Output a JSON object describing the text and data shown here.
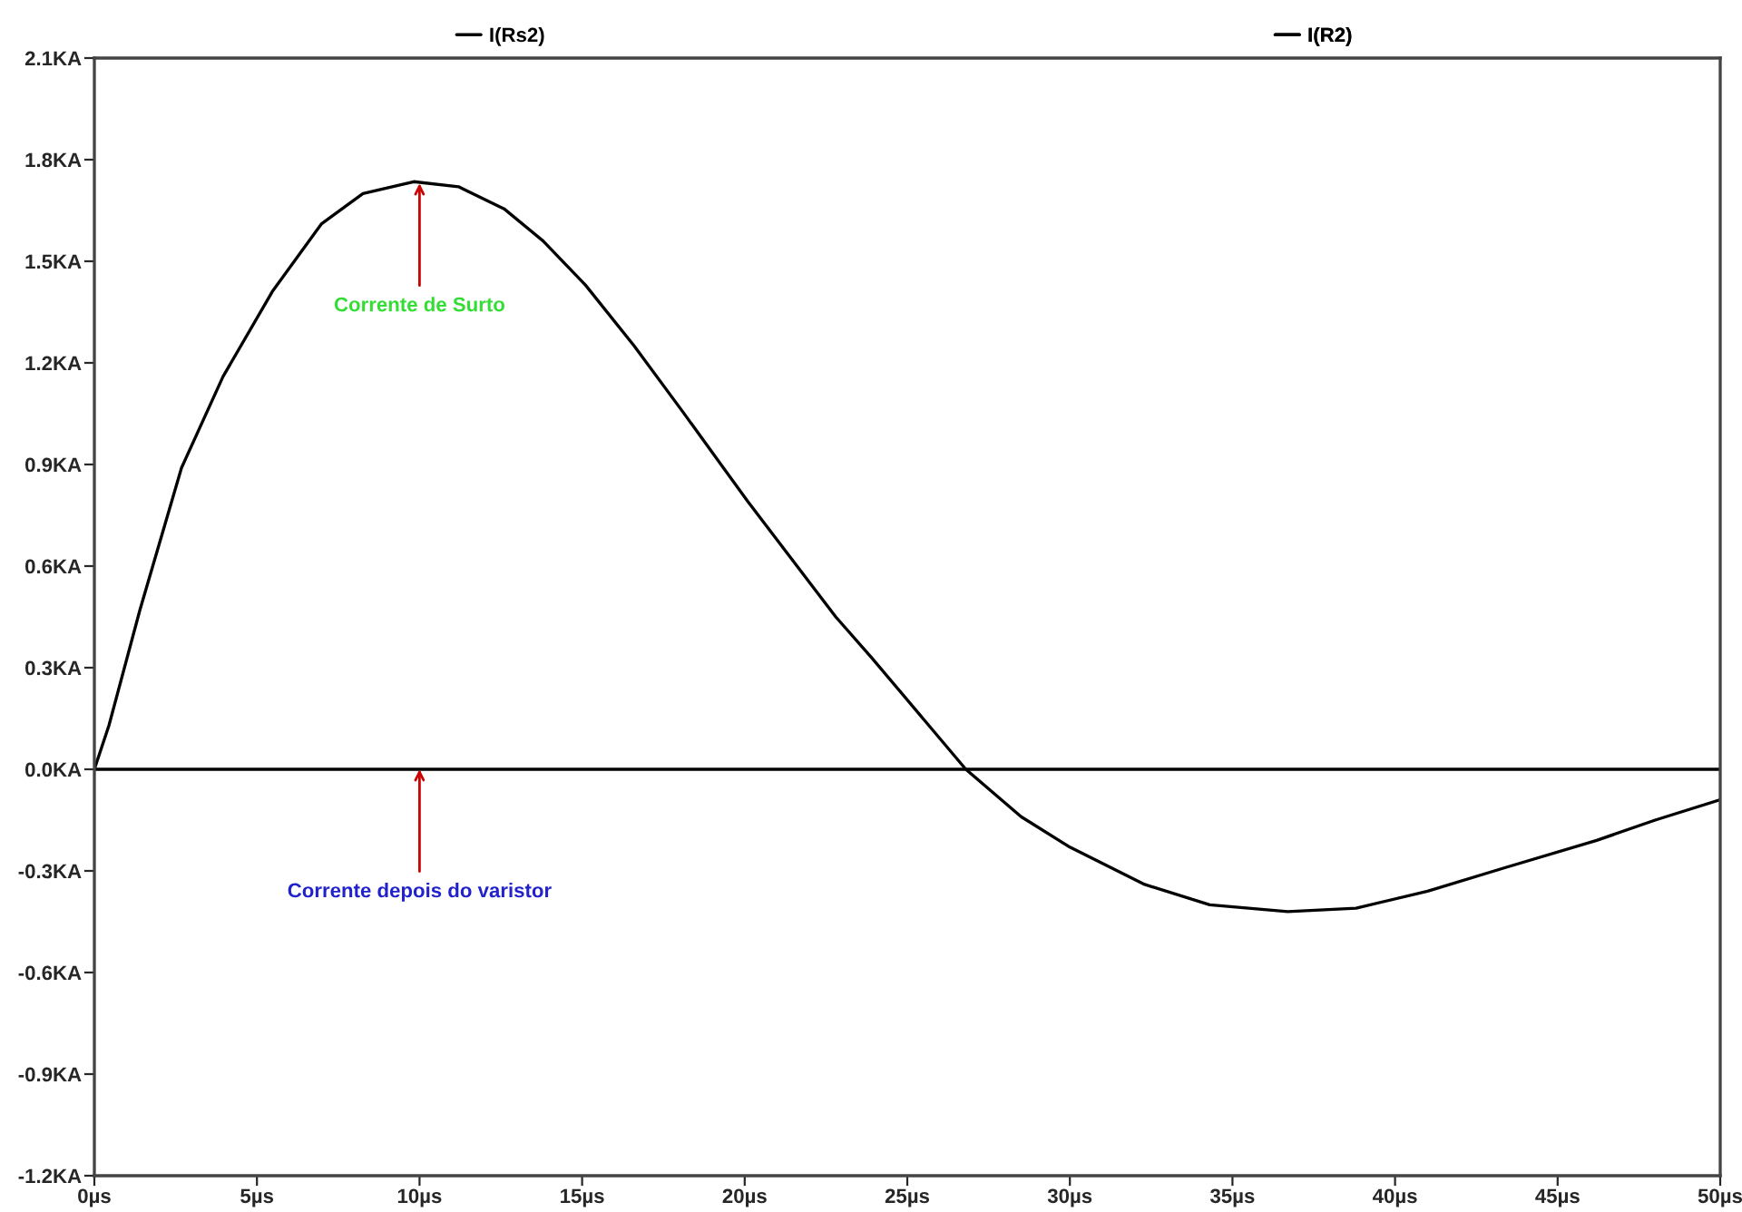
{
  "chart_data": {
    "type": "line",
    "legend": "top",
    "grid": false,
    "series": [
      {
        "name": "I(Rs2)",
        "color": "#000000",
        "x": [
          0,
          0.45,
          1.4,
          2.68,
          3.96,
          5.47,
          6.98,
          8.26,
          9.82,
          11.2,
          12.6,
          13.8,
          15.1,
          16.6,
          18.1,
          20.1,
          22.8,
          23.9,
          26.8,
          28.5,
          30.0,
          32.3,
          34.3,
          36.7,
          38.8,
          41.0,
          43.4,
          46.2,
          48.0,
          50
        ],
        "values": [
          0,
          0.13,
          0.47,
          0.89,
          1.16,
          1.41,
          1.61,
          1.7,
          1.735,
          1.72,
          1.655,
          1.56,
          1.43,
          1.25,
          1.055,
          0.79,
          0.45,
          0.33,
          0,
          -0.14,
          -0.23,
          -0.34,
          -0.4,
          -0.42,
          -0.41,
          -0.36,
          -0.29,
          -0.21,
          -0.15,
          -0.09
        ]
      },
      {
        "name": "I(R2)",
        "color": "#000000",
        "x": [
          0,
          50
        ],
        "values": [
          0,
          0
        ]
      }
    ],
    "xlim": [
      0,
      50
    ],
    "ylim": [
      -1.2,
      2.1
    ],
    "xticks": [
      {
        "value": 0,
        "label": "0µs"
      },
      {
        "value": 5,
        "label": "5µs"
      },
      {
        "value": 10,
        "label": "10µs"
      },
      {
        "value": 15,
        "label": "15µs"
      },
      {
        "value": 20,
        "label": "20µs"
      },
      {
        "value": 25,
        "label": "25µs"
      },
      {
        "value": 30,
        "label": "30µs"
      },
      {
        "value": 35,
        "label": "35µs"
      },
      {
        "value": 40,
        "label": "40µs"
      },
      {
        "value": 45,
        "label": "45µs"
      },
      {
        "value": 50,
        "label": "50µs"
      }
    ],
    "yticks": [
      {
        "value": -1.2,
        "label": "-1.2KA"
      },
      {
        "value": -0.9,
        "label": "-0.9KA"
      },
      {
        "value": -0.6,
        "label": "-0.6KA"
      },
      {
        "value": -0.3,
        "label": "-0.3KA"
      },
      {
        "value": 0,
        "label": "0.0KA"
      },
      {
        "value": 0.3,
        "label": "0.3KA"
      },
      {
        "value": 0.6,
        "label": "0.6KA"
      },
      {
        "value": 0.9,
        "label": "0.9KA"
      },
      {
        "value": 1.2,
        "label": "1.2KA"
      },
      {
        "value": 1.5,
        "label": "1.5KA"
      },
      {
        "value": 1.8,
        "label": "1.8KA"
      },
      {
        "value": 2.1,
        "label": "2.1KA"
      }
    ],
    "annotations": [
      {
        "text": "Corrente de Surto",
        "x": 10,
        "y": 1.73
      },
      {
        "text": "Corrente depois do varistor",
        "x": 10,
        "y": 0
      }
    ]
  }
}
